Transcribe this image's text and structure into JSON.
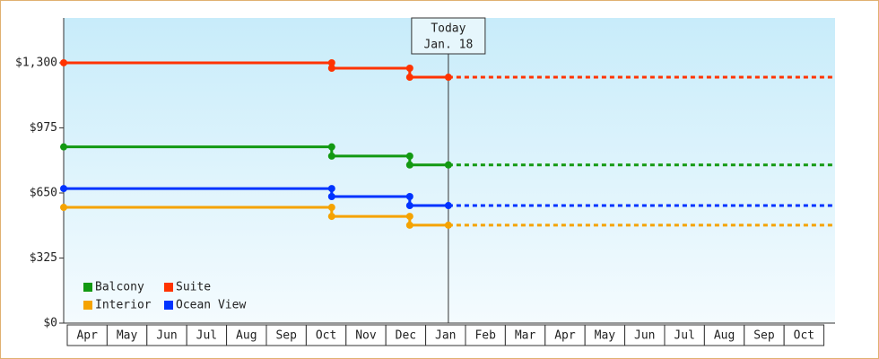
{
  "chart_data": {
    "type": "step-line",
    "x": [
      -0.09,
      6.64,
      6.64,
      8.6,
      8.6,
      9.57,
      19.28
    ],
    "xlim": [
      -0.09,
      19.28
    ],
    "xticks": [
      {
        "value": 0.5,
        "label": "Apr"
      },
      {
        "value": 1.5,
        "label": "May"
      },
      {
        "value": 2.5,
        "label": "Jun"
      },
      {
        "value": 3.5,
        "label": "Jul"
      },
      {
        "value": 4.5,
        "label": "Aug"
      },
      {
        "value": 5.5,
        "label": "Sep"
      },
      {
        "value": 6.5,
        "label": "Oct"
      },
      {
        "value": 7.5,
        "label": "Nov"
      },
      {
        "value": 8.5,
        "label": "Dec"
      },
      {
        "value": 9.5,
        "label": "Jan"
      },
      {
        "value": 10.5,
        "label": "Feb"
      },
      {
        "value": 11.5,
        "label": "Mar"
      },
      {
        "value": 12.5,
        "label": "Apr"
      },
      {
        "value": 13.5,
        "label": "May"
      },
      {
        "value": 14.5,
        "label": "Jun"
      },
      {
        "value": 15.5,
        "label": "Jul"
      },
      {
        "value": 16.5,
        "label": "Aug"
      },
      {
        "value": 17.5,
        "label": "Sep"
      },
      {
        "value": 18.5,
        "label": "Oct"
      }
    ],
    "ylim": [
      0,
      1524
    ],
    "yticks": [
      {
        "value": 0,
        "label": "$0"
      },
      {
        "value": 325,
        "label": "$325"
      },
      {
        "value": 650,
        "label": "$650"
      },
      {
        "value": 975,
        "label": "$975"
      },
      {
        "value": 1300,
        "label": "$1,300"
      }
    ],
    "today": {
      "x": 9.57,
      "label": "Today",
      "date": "Jan. 18"
    },
    "series": [
      {
        "name": "Balcony",
        "color": "#129912",
        "values": [
          880,
          880,
          834,
          834,
          790,
          790,
          790
        ]
      },
      {
        "name": "Suite",
        "color": "#ff3300",
        "values": [
          1300,
          1300,
          1273,
          1273,
          1228,
          1228,
          1228
        ]
      },
      {
        "name": "Interior",
        "color": "#f5a300",
        "values": [
          578,
          578,
          533,
          533,
          489,
          489,
          489
        ]
      },
      {
        "name": "Ocean View",
        "color": "#0033ff",
        "values": [
          672,
          672,
          632,
          632,
          587,
          587,
          587
        ]
      }
    ]
  }
}
